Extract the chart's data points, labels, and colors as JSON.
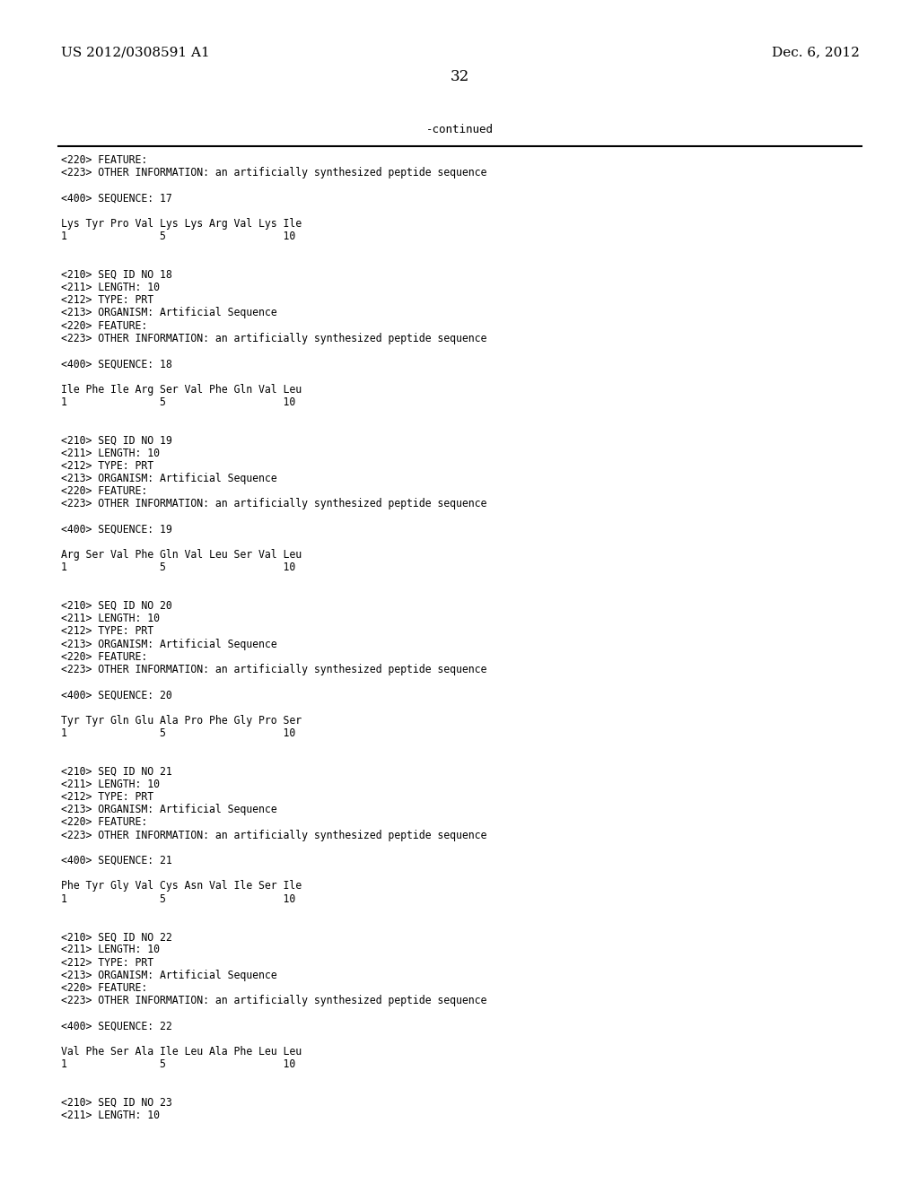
{
  "background_color": "#ffffff",
  "top_left_text": "US 2012/0308591 A1",
  "top_right_text": "Dec. 6, 2012",
  "page_number": "32",
  "continued_text": "-continued",
  "content_lines": [
    "<220> FEATURE:",
    "<223> OTHER INFORMATION: an artificially synthesized peptide sequence",
    "",
    "<400> SEQUENCE: 17",
    "",
    "Lys Tyr Pro Val Lys Lys Arg Val Lys Ile",
    "1               5                   10",
    "",
    "",
    "<210> SEQ ID NO 18",
    "<211> LENGTH: 10",
    "<212> TYPE: PRT",
    "<213> ORGANISM: Artificial Sequence",
    "<220> FEATURE:",
    "<223> OTHER INFORMATION: an artificially synthesized peptide sequence",
    "",
    "<400> SEQUENCE: 18",
    "",
    "Ile Phe Ile Arg Ser Val Phe Gln Val Leu",
    "1               5                   10",
    "",
    "",
    "<210> SEQ ID NO 19",
    "<211> LENGTH: 10",
    "<212> TYPE: PRT",
    "<213> ORGANISM: Artificial Sequence",
    "<220> FEATURE:",
    "<223> OTHER INFORMATION: an artificially synthesized peptide sequence",
    "",
    "<400> SEQUENCE: 19",
    "",
    "Arg Ser Val Phe Gln Val Leu Ser Val Leu",
    "1               5                   10",
    "",
    "",
    "<210> SEQ ID NO 20",
    "<211> LENGTH: 10",
    "<212> TYPE: PRT",
    "<213> ORGANISM: Artificial Sequence",
    "<220> FEATURE:",
    "<223> OTHER INFORMATION: an artificially synthesized peptide sequence",
    "",
    "<400> SEQUENCE: 20",
    "",
    "Tyr Tyr Gln Glu Ala Pro Phe Gly Pro Ser",
    "1               5                   10",
    "",
    "",
    "<210> SEQ ID NO 21",
    "<211> LENGTH: 10",
    "<212> TYPE: PRT",
    "<213> ORGANISM: Artificial Sequence",
    "<220> FEATURE:",
    "<223> OTHER INFORMATION: an artificially synthesized peptide sequence",
    "",
    "<400> SEQUENCE: 21",
    "",
    "Phe Tyr Gly Val Cys Asn Val Ile Ser Ile",
    "1               5                   10",
    "",
    "",
    "<210> SEQ ID NO 22",
    "<211> LENGTH: 10",
    "<212> TYPE: PRT",
    "<213> ORGANISM: Artificial Sequence",
    "<220> FEATURE:",
    "<223> OTHER INFORMATION: an artificially synthesized peptide sequence",
    "",
    "<400> SEQUENCE: 22",
    "",
    "Val Phe Ser Ala Ile Leu Ala Phe Leu Leu",
    "1               5                   10",
    "",
    "",
    "<210> SEQ ID NO 23",
    "<211> LENGTH: 10"
  ]
}
